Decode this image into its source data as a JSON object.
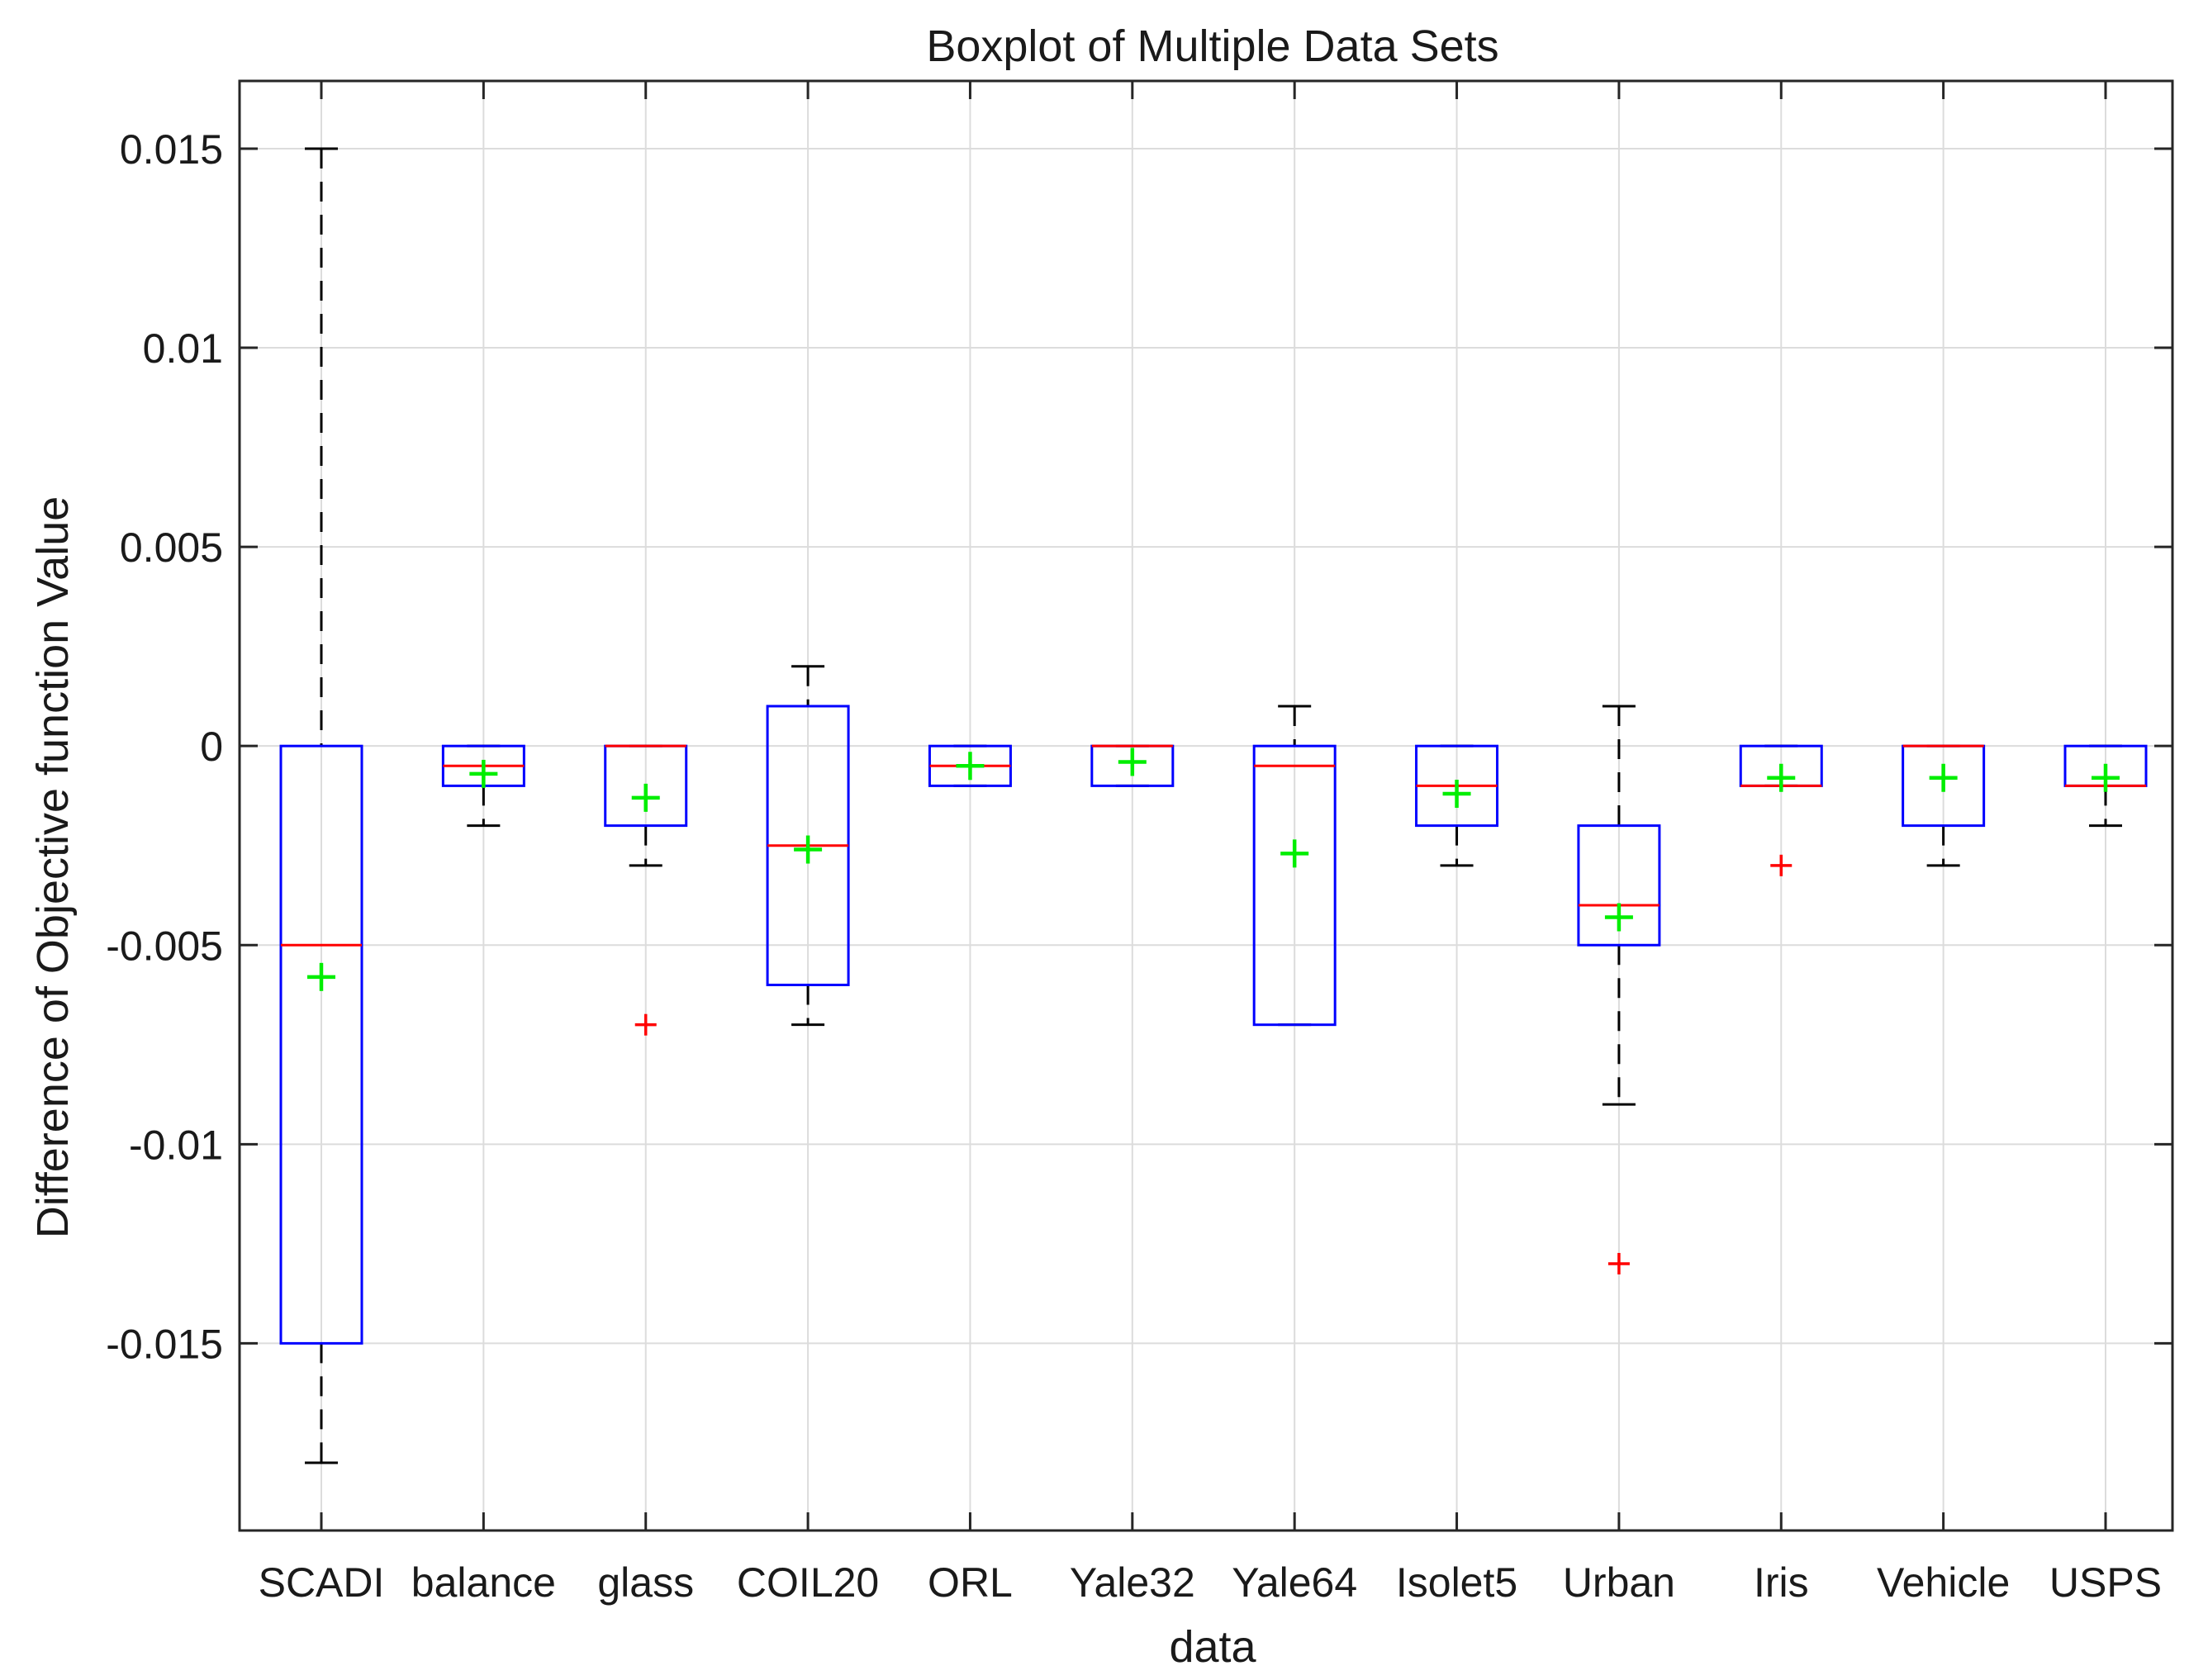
{
  "chart_data": {
    "type": "boxplot",
    "title": "Boxplot of Multiple Data Sets",
    "xlabel": "data",
    "ylabel": "Difference of Objective function Value",
    "ylim": [
      -0.0197,
      0.0167
    ],
    "yticks": [
      -0.015,
      -0.01,
      -0.005,
      0,
      0.005,
      0.01,
      0.015
    ],
    "ytick_labels": [
      "-0.015",
      "-0.01",
      "-0.005",
      "0",
      "0.005",
      "0.01",
      "0.015"
    ],
    "grid": true,
    "categories": [
      "SCADI",
      "balance",
      "glass",
      "COIL20",
      "ORL",
      "Yale32",
      "Yale64",
      "Isolet5",
      "Urban",
      "Iris",
      "Vehicle",
      "USPS"
    ],
    "boxes": [
      {
        "name": "SCADI",
        "whisker_low": -0.018,
        "q1": -0.015,
        "median": -0.005,
        "q3": 0,
        "whisker_high": 0.015,
        "mean": -0.0058,
        "outliers": []
      },
      {
        "name": "balance",
        "whisker_low": -0.002,
        "q1": -0.001,
        "median": -0.0005,
        "q3": 0,
        "whisker_high": 0,
        "mean": -0.0007,
        "outliers": []
      },
      {
        "name": "glass",
        "whisker_low": -0.003,
        "q1": -0.002,
        "median": 0,
        "q3": 0,
        "whisker_high": 0,
        "mean": -0.0013,
        "outliers": [
          -0.007
        ]
      },
      {
        "name": "COIL20",
        "whisker_low": -0.007,
        "q1": -0.006,
        "median": -0.0025,
        "q3": 0.001,
        "whisker_high": 0.002,
        "mean": -0.0026,
        "outliers": []
      },
      {
        "name": "ORL",
        "whisker_low": -0.001,
        "q1": -0.001,
        "median": -0.0005,
        "q3": 0,
        "whisker_high": 0,
        "mean": -0.0005,
        "outliers": []
      },
      {
        "name": "Yale32",
        "whisker_low": -0.001,
        "q1": -0.001,
        "median": 0,
        "q3": 0,
        "whisker_high": 0,
        "mean": -0.0004,
        "outliers": []
      },
      {
        "name": "Yale64",
        "whisker_low": -0.007,
        "q1": -0.007,
        "median": -0.0005,
        "q3": 0,
        "whisker_high": 0.001,
        "mean": -0.0027,
        "outliers": []
      },
      {
        "name": "Isolet5",
        "whisker_low": -0.003,
        "q1": -0.002,
        "median": -0.001,
        "q3": 0,
        "whisker_high": 0,
        "mean": -0.0012,
        "outliers": []
      },
      {
        "name": "Urban",
        "whisker_low": -0.009,
        "q1": -0.005,
        "median": -0.004,
        "q3": -0.002,
        "whisker_high": 0.001,
        "mean": -0.0043,
        "outliers": [
          -0.013
        ]
      },
      {
        "name": "Iris",
        "whisker_low": -0.001,
        "q1": -0.001,
        "median": -0.001,
        "q3": 0,
        "whisker_high": 0,
        "mean": -0.0008,
        "outliers": [
          -0.003
        ]
      },
      {
        "name": "Vehicle",
        "whisker_low": -0.003,
        "q1": -0.002,
        "median": 0,
        "q3": 0,
        "whisker_high": 0,
        "mean": -0.0008,
        "outliers": []
      },
      {
        "name": "USPS",
        "whisker_low": -0.002,
        "q1": -0.001,
        "median": -0.001,
        "q3": 0,
        "whisker_high": 0,
        "mean": -0.0008,
        "outliers": []
      }
    ]
  },
  "colors": {
    "box": "#0000ff",
    "median": "#ff0000",
    "whisker": "#000000",
    "outlier": "#ff0000",
    "mean": "#00ee00",
    "grid": "#dcdcdc",
    "axis": "#262626"
  }
}
